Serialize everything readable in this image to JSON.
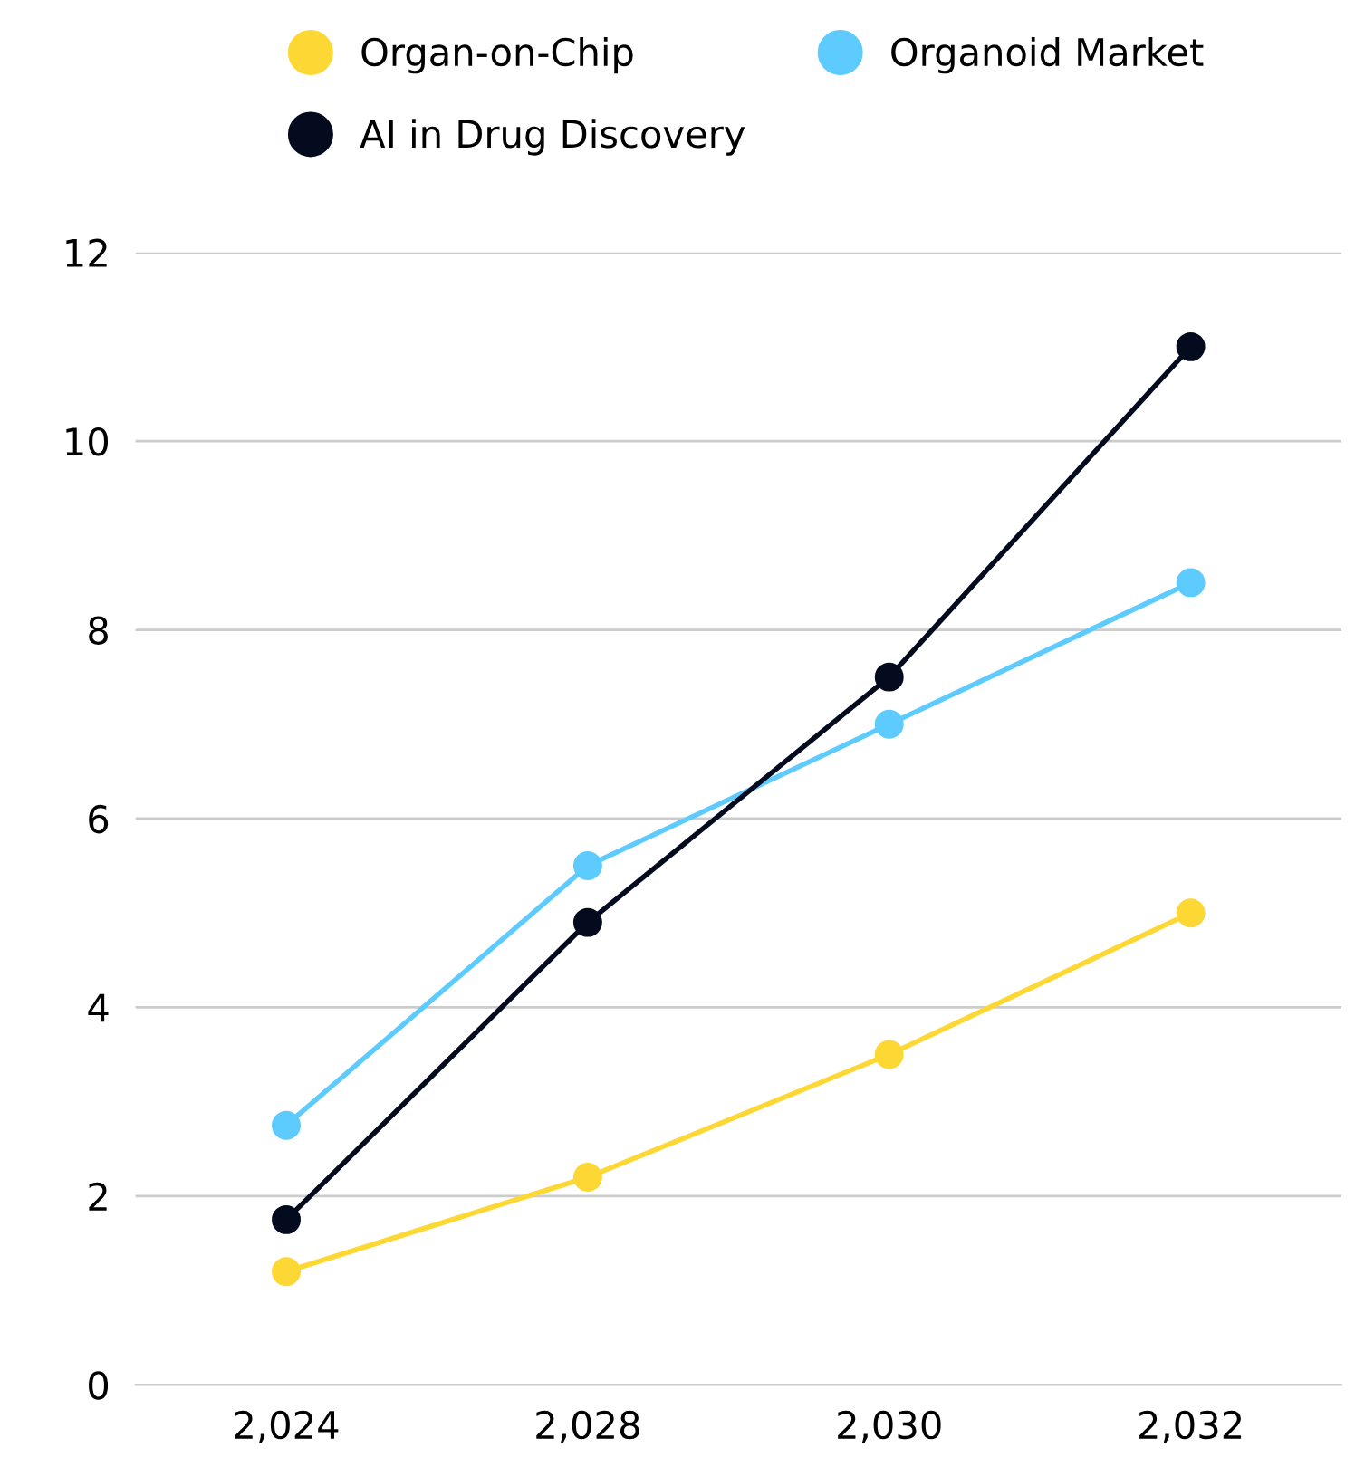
{
  "chart_data": {
    "type": "line",
    "categories": [
      "2,024",
      "2,028",
      "2,030",
      "2,032"
    ],
    "series": [
      {
        "name": "Organ-on-Chip",
        "color": "#fdd835",
        "values": [
          1.2,
          2.2,
          3.5,
          5.0
        ]
      },
      {
        "name": "Organoid Market",
        "color": "#5ecbff",
        "values": [
          2.75,
          5.5,
          7.0,
          8.5
        ]
      },
      {
        "name": "AI in Drug Discovery",
        "color": "#050b1f",
        "values": [
          1.75,
          4.9,
          7.5,
          11.0
        ]
      }
    ],
    "ylim": [
      0,
      12
    ],
    "yticks": [
      0,
      2,
      4,
      6,
      8,
      10,
      12
    ],
    "grid": "y",
    "legend": "top",
    "marker": "circle",
    "line_style": "solid"
  }
}
